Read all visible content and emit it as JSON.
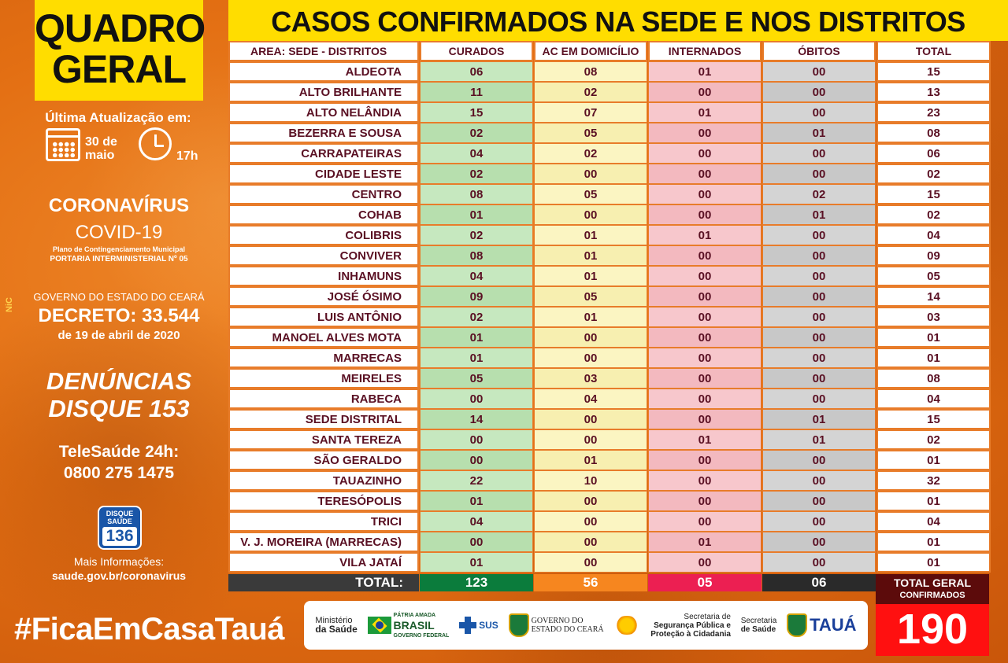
{
  "left": {
    "badge_line1": "QUADRO",
    "badge_line2": "GERAL",
    "update_label": "Última Atualização em:",
    "date_line1": "30 de",
    "date_line2": "maio",
    "time": "17h",
    "coronavirus": "CORONAVÍRUS",
    "covid": "COVID-19",
    "plano": "Plano de Contingenciamento Municipal",
    "portaria": "PORTARIA INTERMINISTERIAL Nº 05",
    "nic": "NiC",
    "gov_label": "GOVERNO DO ESTADO DO CEARÁ",
    "decreto": "DECRETO: 33.544",
    "decreto_date": "de 19 de abril de 2020",
    "denuncias_line1": "DENÚNCIAS",
    "denuncias_line2": "DISQUE 153",
    "telesaude_line1": "TeleSaúde 24h:",
    "telesaude_line2": "0800 275 1475",
    "disque_line1": "DISQUE",
    "disque_line2": "SAÚDE",
    "disque_number": "136",
    "mais_info": "Mais Informações:",
    "site": "saude.gov.br/coronavirus",
    "hashtag": "#FicaEmCasaTauá"
  },
  "header": {
    "title": "CASOS CONFIRMADOS NA SEDE E NOS DISTRITOS"
  },
  "table": {
    "columns": [
      "AREA: SEDE - DISTRITOS",
      "CURADOS",
      "AC EM DOMICÍLIO",
      "INTERNADOS",
      "ÓBITOS",
      "TOTAL"
    ],
    "rows": [
      [
        "ALDEOTA",
        "06",
        "08",
        "01",
        "00",
        "15"
      ],
      [
        "ALTO BRILHANTE",
        "11",
        "02",
        "00",
        "00",
        "13"
      ],
      [
        "ALTO NELÂNDIA",
        "15",
        "07",
        "01",
        "00",
        "23"
      ],
      [
        "BEZERRA E SOUSA",
        "02",
        "05",
        "00",
        "01",
        "08"
      ],
      [
        "CARRAPATEIRAS",
        "04",
        "02",
        "00",
        "00",
        "06"
      ],
      [
        "CIDADE LESTE",
        "02",
        "00",
        "00",
        "00",
        "02"
      ],
      [
        "CENTRO",
        "08",
        "05",
        "00",
        "02",
        "15"
      ],
      [
        "COHAB",
        "01",
        "00",
        "00",
        "01",
        "02"
      ],
      [
        "COLIBRIS",
        "02",
        "01",
        "01",
        "00",
        "04"
      ],
      [
        "CONVIVER",
        "08",
        "01",
        "00",
        "00",
        "09"
      ],
      [
        "INHAMUNS",
        "04",
        "01",
        "00",
        "00",
        "05"
      ],
      [
        "JOSÉ ÓSIMO",
        "09",
        "05",
        "00",
        "00",
        "14"
      ],
      [
        "LUIS ANTÔNIO",
        "02",
        "01",
        "00",
        "00",
        "03"
      ],
      [
        "MANOEL ALVES MOTA",
        "01",
        "00",
        "00",
        "00",
        "01"
      ],
      [
        "MARRECAS",
        "01",
        "00",
        "00",
        "00",
        "01"
      ],
      [
        "MEIRELES",
        "05",
        "03",
        "00",
        "00",
        "08"
      ],
      [
        "RABECA",
        "00",
        "04",
        "00",
        "00",
        "04"
      ],
      [
        "SEDE DISTRITAL",
        "14",
        "00",
        "00",
        "01",
        "15"
      ],
      [
        "SANTA TEREZA",
        "00",
        "00",
        "01",
        "01",
        "02"
      ],
      [
        "SÃO GERALDO",
        "00",
        "01",
        "00",
        "00",
        "01"
      ],
      [
        "TAUAZINHO",
        "22",
        "10",
        "00",
        "00",
        "32"
      ],
      [
        "TERESÓPOLIS",
        "01",
        "00",
        "00",
        "00",
        "01"
      ],
      [
        "TRICI",
        "04",
        "00",
        "00",
        "00",
        "04"
      ],
      [
        "V. J. MOREIRA (MARRECAS)",
        "00",
        "00",
        "01",
        "00",
        "01"
      ],
      [
        "VILA JATAÍ",
        "01",
        "00",
        "00",
        "00",
        "01"
      ]
    ],
    "totals": {
      "label": "TOTAL:",
      "curados": "123",
      "domicilio": "56",
      "internados": "05",
      "obitos": "06"
    }
  },
  "total_geral": {
    "label": "TOTAL GERAL",
    "sub": "CONFIRMADOS",
    "value": "190"
  },
  "logos": {
    "ministerio_line1": "Ministério",
    "ministerio_line2": "da Saúde",
    "brasil_line1": "PÁTRIA AMADA",
    "brasil_line2": "BRASIL",
    "brasil_line3": "GOVERNO FEDERAL",
    "sus": "SUS",
    "gov_ce_line1": "GOVERNO DO",
    "gov_ce_line2": "ESTADO DO CEARÁ",
    "seg_line1": "Secretaria de",
    "seg_line2": "Segurança Pública e",
    "seg_line3": "Proteção à Cidadania",
    "sesa_line1": "Secretaria",
    "sesa_line2": "de Saúde",
    "taua": "TAUÁ"
  },
  "colors": {
    "header_yellow": "#ffdd00",
    "background_orange": "#e36f13",
    "curados_green": "#0b7c3c",
    "domicilio_orange": "#f6861f",
    "internados_pink": "#ec1f52",
    "obitos_dark": "#2a2a2a",
    "total_red": "#ff1010"
  },
  "icons": [
    "calendar-icon",
    "clock-icon",
    "disque-saude-icon",
    "brazil-flag-icon",
    "sus-cross-icon",
    "ceara-seal-icon",
    "covid-sun-icon",
    "taua-seal-icon"
  ]
}
